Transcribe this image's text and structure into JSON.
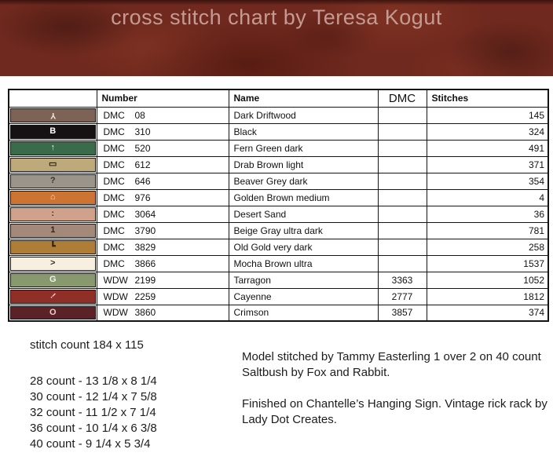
{
  "banner": {
    "title": "cross stitch chart by Teresa Kogut",
    "background_color": "#70291e",
    "title_color": "#c49a92"
  },
  "table": {
    "headers": {
      "swatch": "",
      "number": "Number",
      "name": "Name",
      "dmc": "DMC",
      "stitches": "Stitches"
    },
    "rows": [
      {
        "symbol": "Y",
        "symbol_rotate": 180,
        "symbol_color": "#f2e6d8",
        "swatch_color": "#7c6355",
        "brand": "DMC",
        "code": "08",
        "name": "Dark Driftwood",
        "dmc": "",
        "stitches": "145"
      },
      {
        "symbol": "B",
        "symbol_rotate": 0,
        "symbol_color": "#ffffff",
        "swatch_color": "#161113",
        "brand": "DMC",
        "code": "310",
        "name": "Black",
        "dmc": "",
        "stitches": "324"
      },
      {
        "symbol": "↑",
        "symbol_rotate": 0,
        "symbol_color": "#eef3ea",
        "swatch_color": "#3a6b4b",
        "brand": "DMC",
        "code": "520",
        "name": "Fern Green dark",
        "dmc": "",
        "stitches": "491"
      },
      {
        "symbol": "▭",
        "symbol_rotate": 0,
        "symbol_color": "#2a2012",
        "swatch_color": "#bda97a",
        "brand": "DMC",
        "code": "612",
        "name": "Drab Brown light",
        "dmc": "",
        "stitches": "371"
      },
      {
        "symbol": "?",
        "symbol_rotate": 0,
        "symbol_color": "#37322c",
        "swatch_color": "#9a948b",
        "brand": "DMC",
        "code": "646",
        "name": "Beaver Grey dark",
        "dmc": "",
        "stitches": "354"
      },
      {
        "symbol": "⌂",
        "symbol_rotate": 0,
        "symbol_color": "#f5e3c8",
        "swatch_color": "#cb7434",
        "brand": "DMC",
        "code": "976",
        "name": "Golden Brown medium",
        "dmc": "",
        "stitches": "4"
      },
      {
        "symbol": ":",
        "symbol_rotate": 0,
        "symbol_color": "#48301f",
        "swatch_color": "#d0a18b",
        "brand": "DMC",
        "code": "3064",
        "name": "Desert Sand",
        "dmc": "",
        "stitches": "36"
      },
      {
        "symbol": "1",
        "symbol_rotate": 0,
        "symbol_color": "#2d251d",
        "swatch_color": "#a28979",
        "brand": "DMC",
        "code": "3790",
        "name": "Beige Gray ultra dark",
        "dmc": "",
        "stitches": "781"
      },
      {
        "symbol": "┗",
        "symbol_rotate": 0,
        "symbol_color": "#33230e",
        "swatch_color": "#ae7d36",
        "brand": "DMC",
        "code": "3829",
        "name": "Old Gold very dark",
        "dmc": "",
        "stitches": "258"
      },
      {
        "symbol": ">",
        "symbol_rotate": 0,
        "symbol_color": "#3a332b",
        "swatch_color": "#f7efdf",
        "brand": "DMC",
        "code": "3866",
        "name": "Mocha Brown ultra",
        "dmc": "",
        "stitches": "1537"
      },
      {
        "symbol": "G",
        "symbol_rotate": 0,
        "symbol_color": "#f1f3e9",
        "swatch_color": "#88986f",
        "brand": "WDW",
        "code": "2199",
        "name": "Tarragon",
        "dmc": "3363",
        "stitches": "1052"
      },
      {
        "symbol": "!",
        "symbol_rotate": 45,
        "symbol_color": "#efcac5",
        "swatch_color": "#8f2f28",
        "brand": "WDW",
        "code": "2259",
        "name": "Cayenne",
        "dmc": "2777",
        "stitches": "1812"
      },
      {
        "symbol": "O",
        "symbol_rotate": 0,
        "symbol_color": "#f2cccc",
        "swatch_color": "#5b2327",
        "brand": "WDW",
        "code": "3860",
        "name": "Crimson",
        "dmc": "3857",
        "stitches": "374"
      }
    ]
  },
  "stitch_info": {
    "stitch_count": "stitch count 184 x 115",
    "sizes": [
      "28 count - 13 1/8 x 8 1/4",
      "30 count - 12 1/4 x 7 5/8",
      "32 count - 11 1/2 x 7 1/4",
      "36 count - 10 1/4 x 6 3/8",
      "40 count - 9 1/4 x 5 3/4"
    ]
  },
  "notes": {
    "paragraph1": "Model stitched by Tammy Easterling 1 over 2 on 40 count Saltbush by Fox and Rabbit.",
    "paragraph2": "Finished on Chantelle’s Hanging Sign. Vintage rick rack by Lady Dot Creates."
  }
}
